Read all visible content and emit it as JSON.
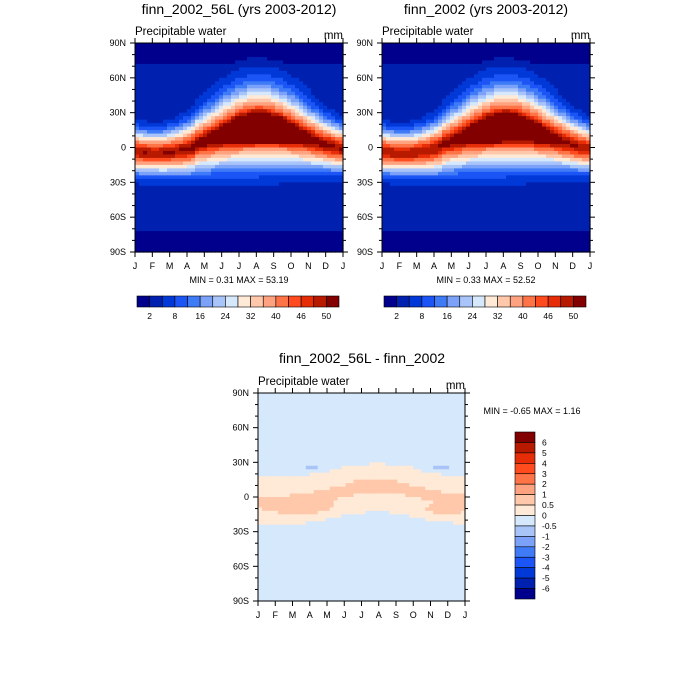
{
  "palette": {
    "levels16": [
      "#00008c",
      "#0020b0",
      "#0039d8",
      "#1c55f5",
      "#3f7af7",
      "#7ba2f8",
      "#a9c4f9",
      "#d6e8fb",
      "#ffe9d7",
      "#ffc8ab",
      "#ffa280",
      "#ff7446",
      "#ff4b1e",
      "#e62d08",
      "#b81a00",
      "#820000"
    ],
    "diff16": [
      "#00008c",
      "#0020b0",
      "#0039d8",
      "#1c55f5",
      "#3f7af7",
      "#7ba2f8",
      "#a9c4f9",
      "#d6e8fb",
      "#ffe9d7",
      "#ffc8ab",
      "#ffa280",
      "#ff7446",
      "#ff4b1e",
      "#e62d08",
      "#b81a00",
      "#820000"
    ]
  },
  "chart_data": [
    {
      "type": "heatmap",
      "title": "finn_2002_56L (yrs 2003-2012)",
      "left_label": "Precipitable water",
      "units": "mm",
      "xlabel": "",
      "ylabel": "",
      "x_ticks": [
        "J",
        "F",
        "M",
        "A",
        "M",
        "J",
        "J",
        "A",
        "S",
        "O",
        "N",
        "D",
        "J"
      ],
      "y_ticks": [
        "90N",
        "60N",
        "30N",
        "0",
        "30S",
        "60S",
        "90S"
      ],
      "ylim": [
        -90,
        90
      ],
      "stats": "MIN =   0.31 MAX =  53.19",
      "min": 0.31,
      "max": 53.19,
      "colorbar": {
        "orientation": "horizontal",
        "labels": [
          "2",
          "8",
          "16",
          "24",
          "32",
          "40",
          "46",
          "50"
        ]
      }
    },
    {
      "type": "heatmap",
      "title": "finn_2002 (yrs 2003-2012)",
      "left_label": "Precipitable water",
      "units": "mm",
      "xlabel": "",
      "ylabel": "",
      "x_ticks": [
        "J",
        "F",
        "M",
        "A",
        "M",
        "J",
        "J",
        "A",
        "S",
        "O",
        "N",
        "D",
        "J"
      ],
      "y_ticks": [
        "90N",
        "60N",
        "30N",
        "0",
        "30S",
        "60S",
        "90S"
      ],
      "ylim": [
        -90,
        90
      ],
      "stats": "MIN =   0.33 MAX =  52.52",
      "min": 0.33,
      "max": 52.52,
      "colorbar": {
        "orientation": "horizontal",
        "labels": [
          "2",
          "8",
          "16",
          "24",
          "32",
          "40",
          "46",
          "50"
        ]
      }
    },
    {
      "type": "heatmap",
      "title": "finn_2002_56L - finn_2002",
      "left_label": "Precipitable water",
      "units": "mm",
      "xlabel": "",
      "ylabel": "",
      "x_ticks": [
        "J",
        "F",
        "M",
        "A",
        "M",
        "J",
        "J",
        "A",
        "S",
        "O",
        "N",
        "D",
        "J"
      ],
      "y_ticks": [
        "90N",
        "60N",
        "30N",
        "0",
        "30S",
        "60S",
        "90S"
      ],
      "ylim": [
        -90,
        90
      ],
      "stats": "MIN =  -0.65 MAX =   1.16",
      "min": -0.65,
      "max": 1.16,
      "colorbar": {
        "orientation": "vertical",
        "labels": [
          "6",
          "5",
          "4",
          "3",
          "2",
          "1",
          "0.5",
          "0",
          "-0.5",
          "-1",
          "-2",
          "-3",
          "-4",
          "-5",
          "-6"
        ]
      }
    }
  ]
}
